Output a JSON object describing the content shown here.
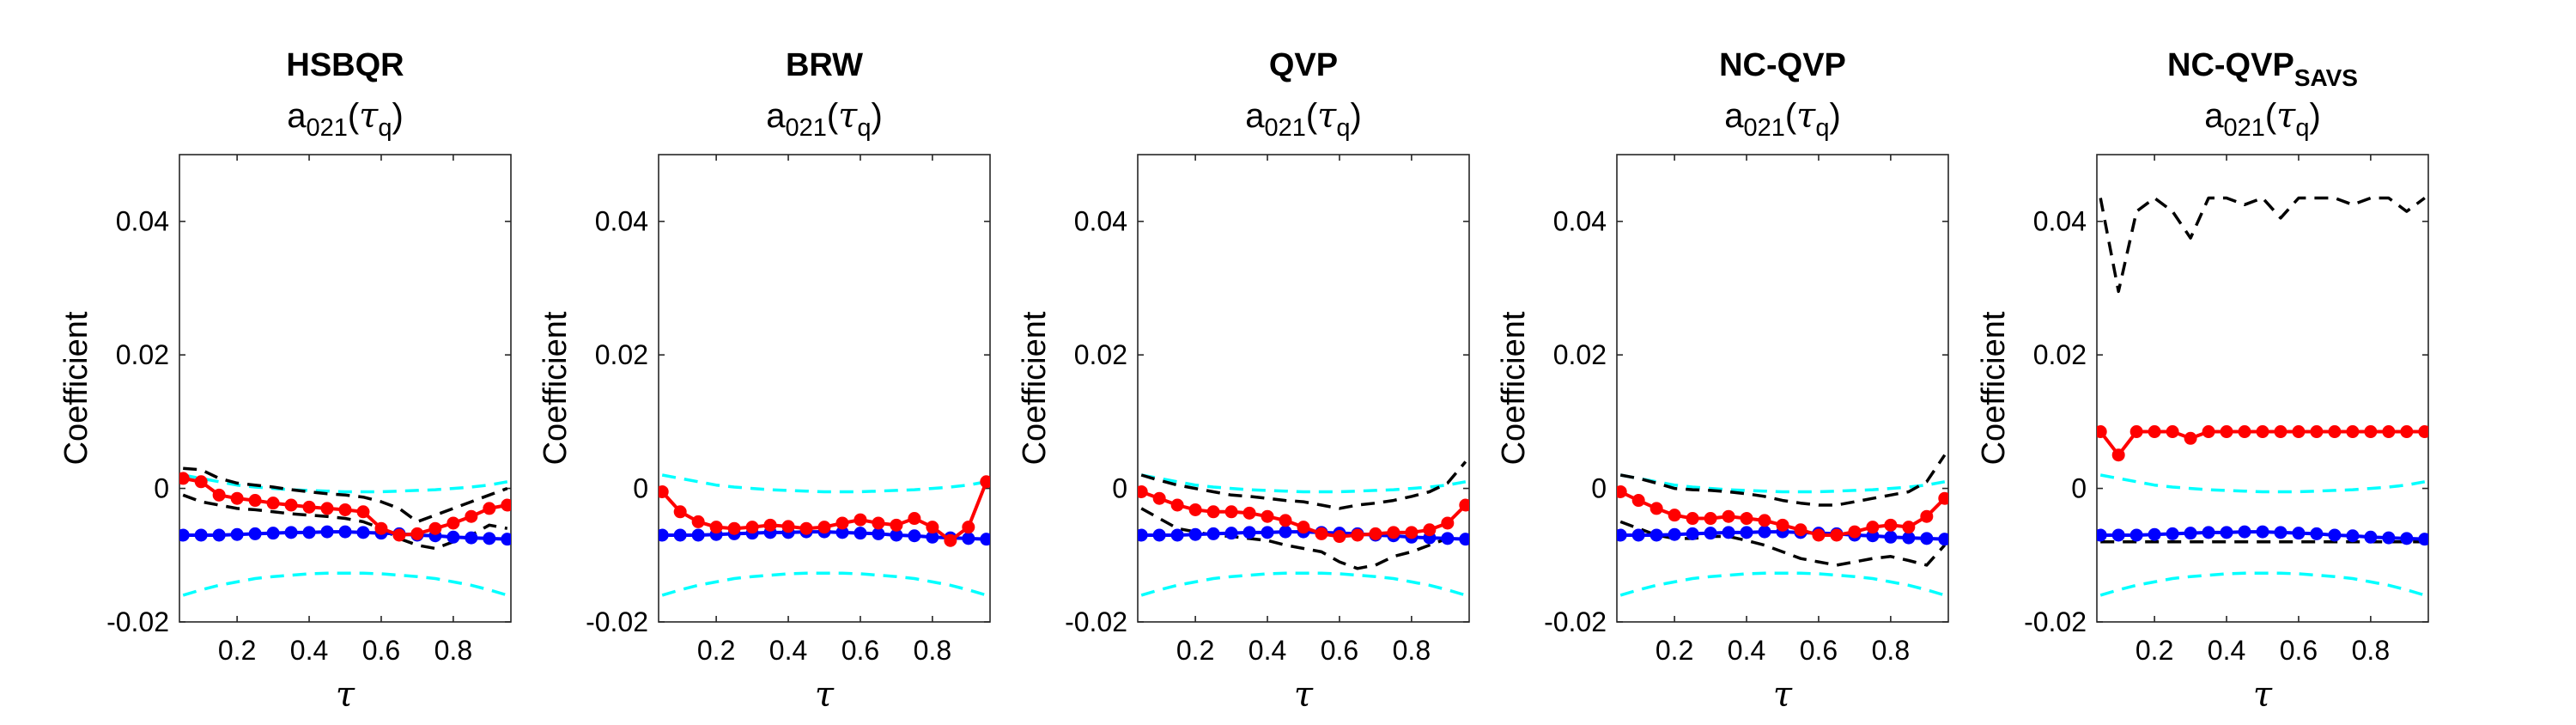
{
  "figure": {
    "colors": {
      "estimate": "#ff0000",
      "reference": "#0000ff",
      "band": "#000000",
      "true_band": "#00ffff"
    }
  },
  "chart_data": [
    {
      "type": "line",
      "title": "HSBQR",
      "title_sub": "",
      "subtitle": {
        "base": "a",
        "sub1": "021",
        "paren_open": "(",
        "tau": "τ",
        "sub2": "q",
        "paren_close": ")"
      },
      "xlabel": "τ",
      "ylabel": "Coefficient",
      "xlim": [
        0.04,
        0.96
      ],
      "ylim": [
        -0.02,
        0.05
      ],
      "xticks": [
        0.2,
        0.4,
        0.6,
        0.8
      ],
      "xtick_labels": [
        "0.2",
        "0.4",
        "0.6",
        "0.8"
      ],
      "yticks": [
        -0.02,
        0,
        0.02,
        0.04
      ],
      "ytick_labels": [
        "-0.02",
        "0",
        "0.02",
        "0.04"
      ],
      "x": [
        0.05,
        0.1,
        0.15,
        0.2,
        0.25,
        0.3,
        0.35,
        0.4,
        0.45,
        0.5,
        0.55,
        0.6,
        0.65,
        0.7,
        0.75,
        0.8,
        0.85,
        0.9,
        0.95
      ],
      "series": [
        {
          "role": "true_band",
          "style": "dashed",
          "values": [
            0.002,
            0.0015,
            0.001,
            0.0005,
            0.0002,
            0.0,
            -0.0002,
            -0.0003,
            -0.0004,
            -0.0005,
            -0.0005,
            -0.0005,
            -0.0004,
            -0.0003,
            -0.0002,
            0.0,
            0.0002,
            0.0005,
            0.001
          ]
        },
        {
          "role": "true_band",
          "style": "dashed",
          "values": [
            -0.016,
            -0.0152,
            -0.0145,
            -0.014,
            -0.0135,
            -0.0132,
            -0.013,
            -0.0128,
            -0.0127,
            -0.0127,
            -0.0127,
            -0.0128,
            -0.013,
            -0.0132,
            -0.0135,
            -0.014,
            -0.0145,
            -0.0152,
            -0.016
          ]
        },
        {
          "role": "band",
          "style": "dashed",
          "values": [
            0.003,
            0.0028,
            0.0015,
            0.0008,
            0.0005,
            0.0002,
            -0.0002,
            -0.0005,
            -0.0008,
            -0.001,
            -0.0013,
            -0.002,
            -0.003,
            -0.005,
            -0.004,
            -0.003,
            -0.002,
            -0.001,
            0.0
          ]
        },
        {
          "role": "band",
          "style": "dashed",
          "values": [
            -0.001,
            -0.002,
            -0.0025,
            -0.003,
            -0.0032,
            -0.0035,
            -0.0038,
            -0.004,
            -0.0042,
            -0.0045,
            -0.005,
            -0.006,
            -0.0075,
            -0.0085,
            -0.009,
            -0.008,
            -0.007,
            -0.0055,
            -0.006
          ]
        },
        {
          "role": "reference",
          "style": "solid",
          "marker": true,
          "values": [
            -0.007,
            -0.007,
            -0.007,
            -0.0069,
            -0.0068,
            -0.0067,
            -0.0066,
            -0.0066,
            -0.0065,
            -0.0065,
            -0.0066,
            -0.0067,
            -0.0068,
            -0.007,
            -0.0071,
            -0.0073,
            -0.0074,
            -0.0075,
            -0.0076
          ]
        },
        {
          "role": "estimate",
          "style": "solid",
          "marker": true,
          "values": [
            0.0015,
            0.001,
            -0.001,
            -0.0015,
            -0.0018,
            -0.0022,
            -0.0025,
            -0.0028,
            -0.003,
            -0.0032,
            -0.0035,
            -0.006,
            -0.007,
            -0.0068,
            -0.006,
            -0.0052,
            -0.0042,
            -0.003,
            -0.0025
          ]
        }
      ]
    },
    {
      "type": "line",
      "title": "BRW",
      "title_sub": "",
      "subtitle": {
        "base": "a",
        "sub1": "021",
        "paren_open": "(",
        "tau": "τ",
        "sub2": "q",
        "paren_close": ")"
      },
      "xlabel": "τ",
      "ylabel": "Coefficient",
      "xlim": [
        0.04,
        0.96
      ],
      "ylim": [
        -0.02,
        0.05
      ],
      "xticks": [
        0.2,
        0.4,
        0.6,
        0.8
      ],
      "xtick_labels": [
        "0.2",
        "0.4",
        "0.6",
        "0.8"
      ],
      "yticks": [
        -0.02,
        0,
        0.02,
        0.04
      ],
      "ytick_labels": [
        "-0.02",
        "0",
        "0.02",
        "0.04"
      ],
      "x": [
        0.05,
        0.1,
        0.15,
        0.2,
        0.25,
        0.3,
        0.35,
        0.4,
        0.45,
        0.5,
        0.55,
        0.6,
        0.65,
        0.7,
        0.75,
        0.8,
        0.85,
        0.9,
        0.95
      ],
      "series": [
        {
          "role": "true_band",
          "style": "dashed",
          "values": [
            0.002,
            0.0015,
            0.001,
            0.0005,
            0.0002,
            0.0,
            -0.0002,
            -0.0003,
            -0.0004,
            -0.0005,
            -0.0005,
            -0.0005,
            -0.0004,
            -0.0003,
            -0.0002,
            0.0,
            0.0002,
            0.0005,
            0.001
          ]
        },
        {
          "role": "true_band",
          "style": "dashed",
          "values": [
            -0.016,
            -0.0152,
            -0.0145,
            -0.014,
            -0.0135,
            -0.0132,
            -0.013,
            -0.0128,
            -0.0127,
            -0.0127,
            -0.0127,
            -0.0128,
            -0.013,
            -0.0132,
            -0.0135,
            -0.014,
            -0.0145,
            -0.0152,
            -0.016
          ]
        },
        {
          "role": "reference",
          "style": "solid",
          "marker": true,
          "values": [
            -0.007,
            -0.007,
            -0.007,
            -0.0069,
            -0.0068,
            -0.0067,
            -0.0066,
            -0.0066,
            -0.0065,
            -0.0065,
            -0.0066,
            -0.0067,
            -0.0068,
            -0.007,
            -0.0071,
            -0.0073,
            -0.0074,
            -0.0075,
            -0.0076
          ]
        },
        {
          "role": "estimate",
          "style": "solid",
          "marker": true,
          "values": [
            -0.0005,
            -0.0035,
            -0.005,
            -0.0058,
            -0.006,
            -0.0058,
            -0.0055,
            -0.0057,
            -0.006,
            -0.0058,
            -0.0052,
            -0.0047,
            -0.0052,
            -0.0055,
            -0.0045,
            -0.0058,
            -0.0078,
            -0.0058,
            0.001
          ]
        }
      ]
    },
    {
      "type": "line",
      "title": "QVP",
      "title_sub": "",
      "subtitle": {
        "base": "a",
        "sub1": "021",
        "paren_open": "(",
        "tau": "τ",
        "sub2": "q",
        "paren_close": ")"
      },
      "xlabel": "τ",
      "ylabel": "Coefficient",
      "xlim": [
        0.04,
        0.96
      ],
      "ylim": [
        -0.02,
        0.05
      ],
      "xticks": [
        0.2,
        0.4,
        0.6,
        0.8
      ],
      "xtick_labels": [
        "0.2",
        "0.4",
        "0.6",
        "0.8"
      ],
      "yticks": [
        -0.02,
        0,
        0.02,
        0.04
      ],
      "ytick_labels": [
        "-0.02",
        "0",
        "0.02",
        "0.04"
      ],
      "x": [
        0.05,
        0.1,
        0.15,
        0.2,
        0.25,
        0.3,
        0.35,
        0.4,
        0.45,
        0.5,
        0.55,
        0.6,
        0.65,
        0.7,
        0.75,
        0.8,
        0.85,
        0.9,
        0.95
      ],
      "series": [
        {
          "role": "true_band",
          "style": "dashed",
          "values": [
            0.002,
            0.0015,
            0.001,
            0.0005,
            0.0002,
            0.0,
            -0.0002,
            -0.0003,
            -0.0004,
            -0.0005,
            -0.0005,
            -0.0005,
            -0.0004,
            -0.0003,
            -0.0002,
            0.0,
            0.0002,
            0.0005,
            0.001
          ]
        },
        {
          "role": "true_band",
          "style": "dashed",
          "values": [
            -0.016,
            -0.0152,
            -0.0145,
            -0.014,
            -0.0135,
            -0.0132,
            -0.013,
            -0.0128,
            -0.0127,
            -0.0127,
            -0.0127,
            -0.0128,
            -0.013,
            -0.0132,
            -0.0135,
            -0.014,
            -0.0145,
            -0.0152,
            -0.016
          ]
        },
        {
          "role": "band",
          "style": "dashed",
          "values": [
            0.002,
            0.0012,
            0.0005,
            0.0,
            -0.0005,
            -0.001,
            -0.0012,
            -0.0015,
            -0.0018,
            -0.002,
            -0.0025,
            -0.003,
            -0.0025,
            -0.0022,
            -0.0018,
            -0.0012,
            -0.0005,
            0.0008,
            0.004
          ]
        },
        {
          "role": "band",
          "style": "dashed",
          "values": [
            -0.003,
            -0.0045,
            -0.006,
            -0.0065,
            -0.007,
            -0.0072,
            -0.0075,
            -0.0078,
            -0.0085,
            -0.009,
            -0.0095,
            -0.011,
            -0.012,
            -0.0115,
            -0.0102,
            -0.0095,
            -0.0085,
            -0.0075,
            -0.0078
          ]
        },
        {
          "role": "reference",
          "style": "solid",
          "marker": true,
          "values": [
            -0.007,
            -0.007,
            -0.007,
            -0.0069,
            -0.0068,
            -0.0067,
            -0.0066,
            -0.0066,
            -0.0065,
            -0.0065,
            -0.0066,
            -0.0067,
            -0.0068,
            -0.007,
            -0.0071,
            -0.0073,
            -0.0074,
            -0.0075,
            -0.0076
          ]
        },
        {
          "role": "estimate",
          "style": "solid",
          "marker": true,
          "values": [
            -0.0005,
            -0.0015,
            -0.0025,
            -0.0032,
            -0.0035,
            -0.0035,
            -0.0037,
            -0.0042,
            -0.0048,
            -0.0058,
            -0.0068,
            -0.0072,
            -0.007,
            -0.0068,
            -0.0066,
            -0.0066,
            -0.0062,
            -0.0052,
            -0.0025
          ]
        }
      ]
    },
    {
      "type": "line",
      "title": "NC-QVP",
      "title_sub": "",
      "subtitle": {
        "base": "a",
        "sub1": "021",
        "paren_open": "(",
        "tau": "τ",
        "sub2": "q",
        "paren_close": ")"
      },
      "xlabel": "τ",
      "ylabel": "Coefficient",
      "xlim": [
        0.04,
        0.96
      ],
      "ylim": [
        -0.02,
        0.05
      ],
      "xticks": [
        0.2,
        0.4,
        0.6,
        0.8
      ],
      "xtick_labels": [
        "0.2",
        "0.4",
        "0.6",
        "0.8"
      ],
      "yticks": [
        -0.02,
        0,
        0.02,
        0.04
      ],
      "ytick_labels": [
        "-0.02",
        "0",
        "0.02",
        "0.04"
      ],
      "x": [
        0.05,
        0.1,
        0.15,
        0.2,
        0.25,
        0.3,
        0.35,
        0.4,
        0.45,
        0.5,
        0.55,
        0.6,
        0.65,
        0.7,
        0.75,
        0.8,
        0.85,
        0.9,
        0.95
      ],
      "series": [
        {
          "role": "true_band",
          "style": "dashed",
          "values": [
            0.002,
            0.0015,
            0.001,
            0.0005,
            0.0002,
            0.0,
            -0.0002,
            -0.0003,
            -0.0004,
            -0.0005,
            -0.0005,
            -0.0005,
            -0.0004,
            -0.0003,
            -0.0002,
            0.0,
            0.0002,
            0.0005,
            0.001
          ]
        },
        {
          "role": "true_band",
          "style": "dashed",
          "values": [
            -0.016,
            -0.0152,
            -0.0145,
            -0.014,
            -0.0135,
            -0.0132,
            -0.013,
            -0.0128,
            -0.0127,
            -0.0127,
            -0.0127,
            -0.0128,
            -0.013,
            -0.0132,
            -0.0135,
            -0.014,
            -0.0145,
            -0.0152,
            -0.016
          ]
        },
        {
          "role": "band",
          "style": "dashed",
          "values": [
            0.002,
            0.0015,
            0.0008,
            0.0,
            -0.0002,
            -0.0003,
            -0.0005,
            -0.0008,
            -0.0012,
            -0.0018,
            -0.0022,
            -0.0025,
            -0.0025,
            -0.002,
            -0.0015,
            -0.001,
            -0.0005,
            0.001,
            0.005
          ]
        },
        {
          "role": "band",
          "style": "dashed",
          "values": [
            -0.005,
            -0.006,
            -0.007,
            -0.0075,
            -0.0075,
            -0.0072,
            -0.0072,
            -0.0078,
            -0.0085,
            -0.0095,
            -0.0105,
            -0.011,
            -0.0115,
            -0.011,
            -0.0105,
            -0.0102,
            -0.0108,
            -0.0115,
            -0.0085
          ]
        },
        {
          "role": "reference",
          "style": "solid",
          "marker": true,
          "values": [
            -0.007,
            -0.007,
            -0.007,
            -0.0069,
            -0.0068,
            -0.0067,
            -0.0066,
            -0.0066,
            -0.0065,
            -0.0065,
            -0.0066,
            -0.0067,
            -0.0068,
            -0.007,
            -0.0071,
            -0.0073,
            -0.0074,
            -0.0075,
            -0.0076
          ]
        },
        {
          "role": "estimate",
          "style": "solid",
          "marker": true,
          "values": [
            -0.0005,
            -0.0018,
            -0.003,
            -0.004,
            -0.0045,
            -0.0045,
            -0.0042,
            -0.0045,
            -0.0048,
            -0.0055,
            -0.0062,
            -0.007,
            -0.007,
            -0.0065,
            -0.0058,
            -0.0055,
            -0.0058,
            -0.0042,
            -0.0015
          ]
        }
      ]
    },
    {
      "type": "line",
      "title": "NC-QVP",
      "title_sub": "SAVS",
      "subtitle": {
        "base": "a",
        "sub1": "021",
        "paren_open": "(",
        "tau": "τ",
        "sub2": "q",
        "paren_close": ")"
      },
      "xlabel": "τ",
      "ylabel": "Coefficient",
      "xlim": [
        0.04,
        0.96
      ],
      "ylim": [
        -0.02,
        0.05
      ],
      "xticks": [
        0.2,
        0.4,
        0.6,
        0.8
      ],
      "xtick_labels": [
        "0.2",
        "0.4",
        "0.6",
        "0.8"
      ],
      "yticks": [
        -0.02,
        0,
        0.02,
        0.04
      ],
      "ytick_labels": [
        "-0.02",
        "0",
        "0.02",
        "0.04"
      ],
      "x": [
        0.05,
        0.1,
        0.15,
        0.2,
        0.25,
        0.3,
        0.35,
        0.4,
        0.45,
        0.5,
        0.55,
        0.6,
        0.65,
        0.7,
        0.75,
        0.8,
        0.85,
        0.9,
        0.95
      ],
      "series": [
        {
          "role": "true_band",
          "style": "dashed",
          "values": [
            0.002,
            0.0015,
            0.001,
            0.0005,
            0.0002,
            0.0,
            -0.0002,
            -0.0003,
            -0.0004,
            -0.0005,
            -0.0005,
            -0.0005,
            -0.0004,
            -0.0003,
            -0.0002,
            0.0,
            0.0002,
            0.0005,
            0.001
          ]
        },
        {
          "role": "true_band",
          "style": "dashed",
          "values": [
            -0.016,
            -0.0152,
            -0.0145,
            -0.014,
            -0.0135,
            -0.0132,
            -0.013,
            -0.0128,
            -0.0127,
            -0.0127,
            -0.0127,
            -0.0128,
            -0.013,
            -0.0132,
            -0.0135,
            -0.014,
            -0.0145,
            -0.0152,
            -0.016
          ]
        },
        {
          "role": "band",
          "style": "dashed",
          "values": [
            0.0435,
            0.0295,
            0.0415,
            0.0435,
            0.0415,
            0.0375,
            0.0435,
            0.0435,
            0.0425,
            0.0435,
            0.0405,
            0.0435,
            0.0435,
            0.0435,
            0.0425,
            0.0435,
            0.0435,
            0.0415,
            0.0435
          ]
        },
        {
          "role": "band",
          "style": "dashed",
          "values": [
            -0.008,
            -0.008,
            -0.008,
            -0.008,
            -0.008,
            -0.008,
            -0.008,
            -0.008,
            -0.008,
            -0.008,
            -0.008,
            -0.008,
            -0.008,
            -0.008,
            -0.008,
            -0.008,
            -0.008,
            -0.008,
            -0.008
          ]
        },
        {
          "role": "reference",
          "style": "solid",
          "marker": true,
          "values": [
            -0.007,
            -0.007,
            -0.007,
            -0.0069,
            -0.0068,
            -0.0067,
            -0.0066,
            -0.0066,
            -0.0065,
            -0.0065,
            -0.0066,
            -0.0067,
            -0.0068,
            -0.007,
            -0.0071,
            -0.0073,
            -0.0074,
            -0.0075,
            -0.0076
          ]
        },
        {
          "role": "estimate",
          "style": "solid",
          "marker": true,
          "values": [
            0.0085,
            0.005,
            0.0085,
            0.0085,
            0.0085,
            0.0075,
            0.0085,
            0.0085,
            0.0085,
            0.0085,
            0.0085,
            0.0085,
            0.0085,
            0.0085,
            0.0085,
            0.0085,
            0.0085,
            0.0085,
            0.0085
          ]
        }
      ]
    }
  ]
}
